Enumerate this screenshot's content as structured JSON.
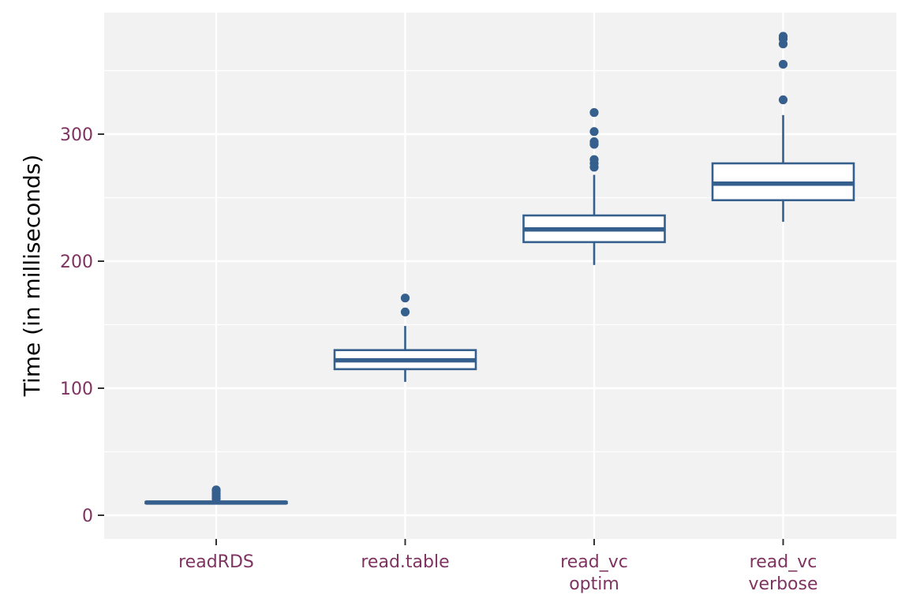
{
  "chart_data": {
    "type": "boxplot",
    "title": "",
    "xlabel": "",
    "ylabel": "Time (in milliseconds)",
    "ylim": [
      -18,
      396
    ],
    "y_ticks": [
      0,
      100,
      200,
      300
    ],
    "y_tick_labels": [
      "0",
      "100",
      "200",
      "300"
    ],
    "categories": [
      {
        "lines": [
          "readRDS"
        ]
      },
      {
        "lines": [
          "read.table"
        ]
      },
      {
        "lines": [
          "read_vc",
          "optim"
        ]
      },
      {
        "lines": [
          "read_vc",
          "verbose"
        ]
      }
    ],
    "series": [
      {
        "name": "readRDS",
        "min": 9,
        "q1": 9.5,
        "median": 10,
        "q3": 10.5,
        "max": 11,
        "outliers": [
          13,
          15,
          17,
          19,
          20
        ]
      },
      {
        "name": "read.table",
        "min": 105,
        "q1": 115,
        "median": 122,
        "q3": 130,
        "max": 149,
        "outliers": [
          160,
          171
        ]
      },
      {
        "name": "read_vc optim",
        "min": 197,
        "q1": 215,
        "median": 225,
        "q3": 236,
        "max": 268,
        "outliers": [
          274,
          277,
          280,
          292,
          294,
          302,
          317
        ]
      },
      {
        "name": "read_vc verbose",
        "min": 231,
        "q1": 248,
        "median": 261,
        "q3": 277,
        "max": 315,
        "outliers": [
          327,
          355,
          371,
          375,
          377
        ]
      }
    ],
    "grid": true,
    "colors": {
      "panel": "#f2f2f2",
      "grid": "#ffffff",
      "box_stroke": "#355f8d",
      "box_fill": "#ffffff",
      "tick_label": "#7e3360",
      "tick_mark": "#333333",
      "axis_title": "#000000"
    }
  }
}
